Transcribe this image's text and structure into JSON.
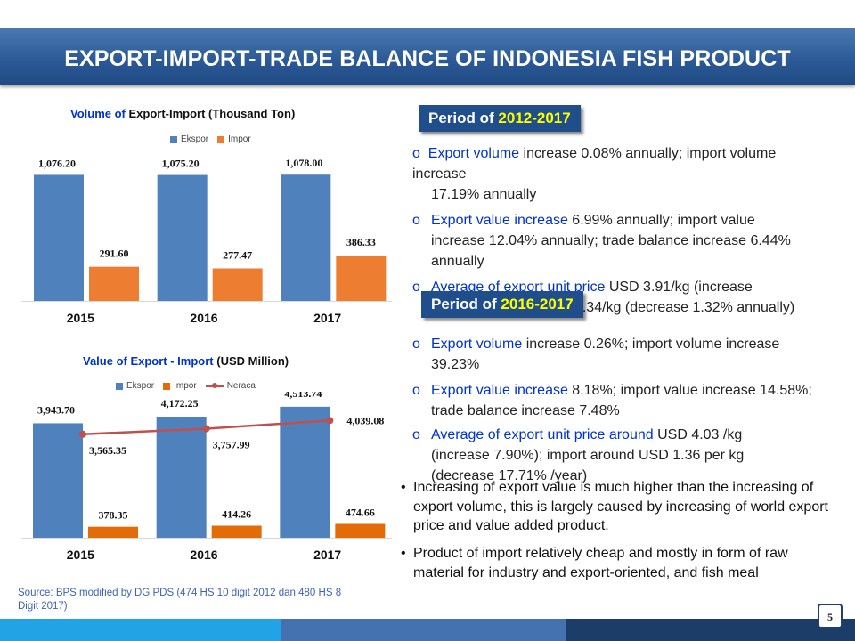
{
  "title": "EXPORT-IMPORT-TRADE BALANCE OF INDONESIA FISH PRODUCT",
  "chart_data": [
    {
      "type": "bar",
      "title_part1": "Volume of ",
      "title_part2": "Export-Import (Thousand Ton)",
      "categories": [
        "2015",
        "2016",
        "2017"
      ],
      "series": [
        {
          "name": "Ekspor",
          "values": [
            1076.2,
            1075.2,
            1078.0
          ],
          "labels": [
            "1,076.20",
            "1,075.20",
            "1,078.00"
          ],
          "color": "#4f81bd"
        },
        {
          "name": "Impor",
          "values": [
            291.6,
            277.47,
            386.33
          ],
          "labels": [
            "291.60",
            "277.47",
            "386.33"
          ],
          "color": "#ed7d31"
        }
      ],
      "ylim": [
        0,
        1300
      ]
    },
    {
      "type": "bar+line",
      "title_part1": "Value of Export - Import ",
      "title_part2": "(USD Million)",
      "categories": [
        "2015",
        "2016",
        "2017"
      ],
      "series": [
        {
          "name": "Ekspor",
          "values": [
            3943.7,
            4172.25,
            4513.74
          ],
          "labels": [
            "3,943.70",
            "4,172.25",
            "4,513.74"
          ],
          "color": "#4f81bd"
        },
        {
          "name": "Impor",
          "values": [
            378.35,
            414.26,
            474.66
          ],
          "labels": [
            "378.35",
            "414.26",
            "474.66"
          ],
          "color": "#e36c09"
        },
        {
          "name": "Neraca",
          "values": [
            3565.35,
            3757.99,
            4039.08
          ],
          "labels": [
            "3,565.35",
            "3,757.99",
            "4,039.08"
          ],
          "color": "#c0504d",
          "kind": "line"
        }
      ],
      "ylim": [
        0,
        5000
      ]
    }
  ],
  "period1": {
    "prefix": "Period of ",
    "years": "2012-2017",
    "marker": "o",
    "b1_blue": "Export volume",
    "b1_text": " increase 0.08% annually; import volume increase",
    "b1_line2": "17.19% annually",
    "b2_blue": "Export value increase",
    "b2_text": " 6.99% annually; import value increase  12.04% annually; trade balance increase 6.44% annually",
    "b3_blue": "Average of export unit price",
    "b3_text": " USD 3.91/kg (increase annually); import USD 1.34/kg (decrease 1.32% annually)"
  },
  "period2": {
    "prefix": "Period of ",
    "years": "2016-2017",
    "b1_blue": "Export volume",
    "b1_text": " increase 0.26%; import volume increase 39.23%",
    "b2_blue": "Export value increase",
    "b2_text": " 8.18%; import value increase 14.58%; trade  balance increase 7.48%",
    "b3_blue": "Average of export unit price around",
    "b3_text": " USD 4.03 /kg (increase  7.90%); import around USD 1.36 per kg (decrease 17.71% /year)"
  },
  "notes": [
    "Increasing of export value is much higher than the increasing of export  volume, this is largely caused by increasing of world export price and  value added product.",
    "Product of import relatively cheap and mostly in form of raw material  for industry and export-oriented, and fish meal"
  ],
  "source": "Source: BPS modified by DG PDS (474 HS 10 digit 2012 dan 480 HS 8 Digit 2017)",
  "page_number": "5",
  "colors": {
    "banner": "#2c5a96",
    "ekspor": "#4f81bd",
    "impor": "#ed7d31",
    "neraca": "#c0504d",
    "highlight": "#ffff00"
  }
}
